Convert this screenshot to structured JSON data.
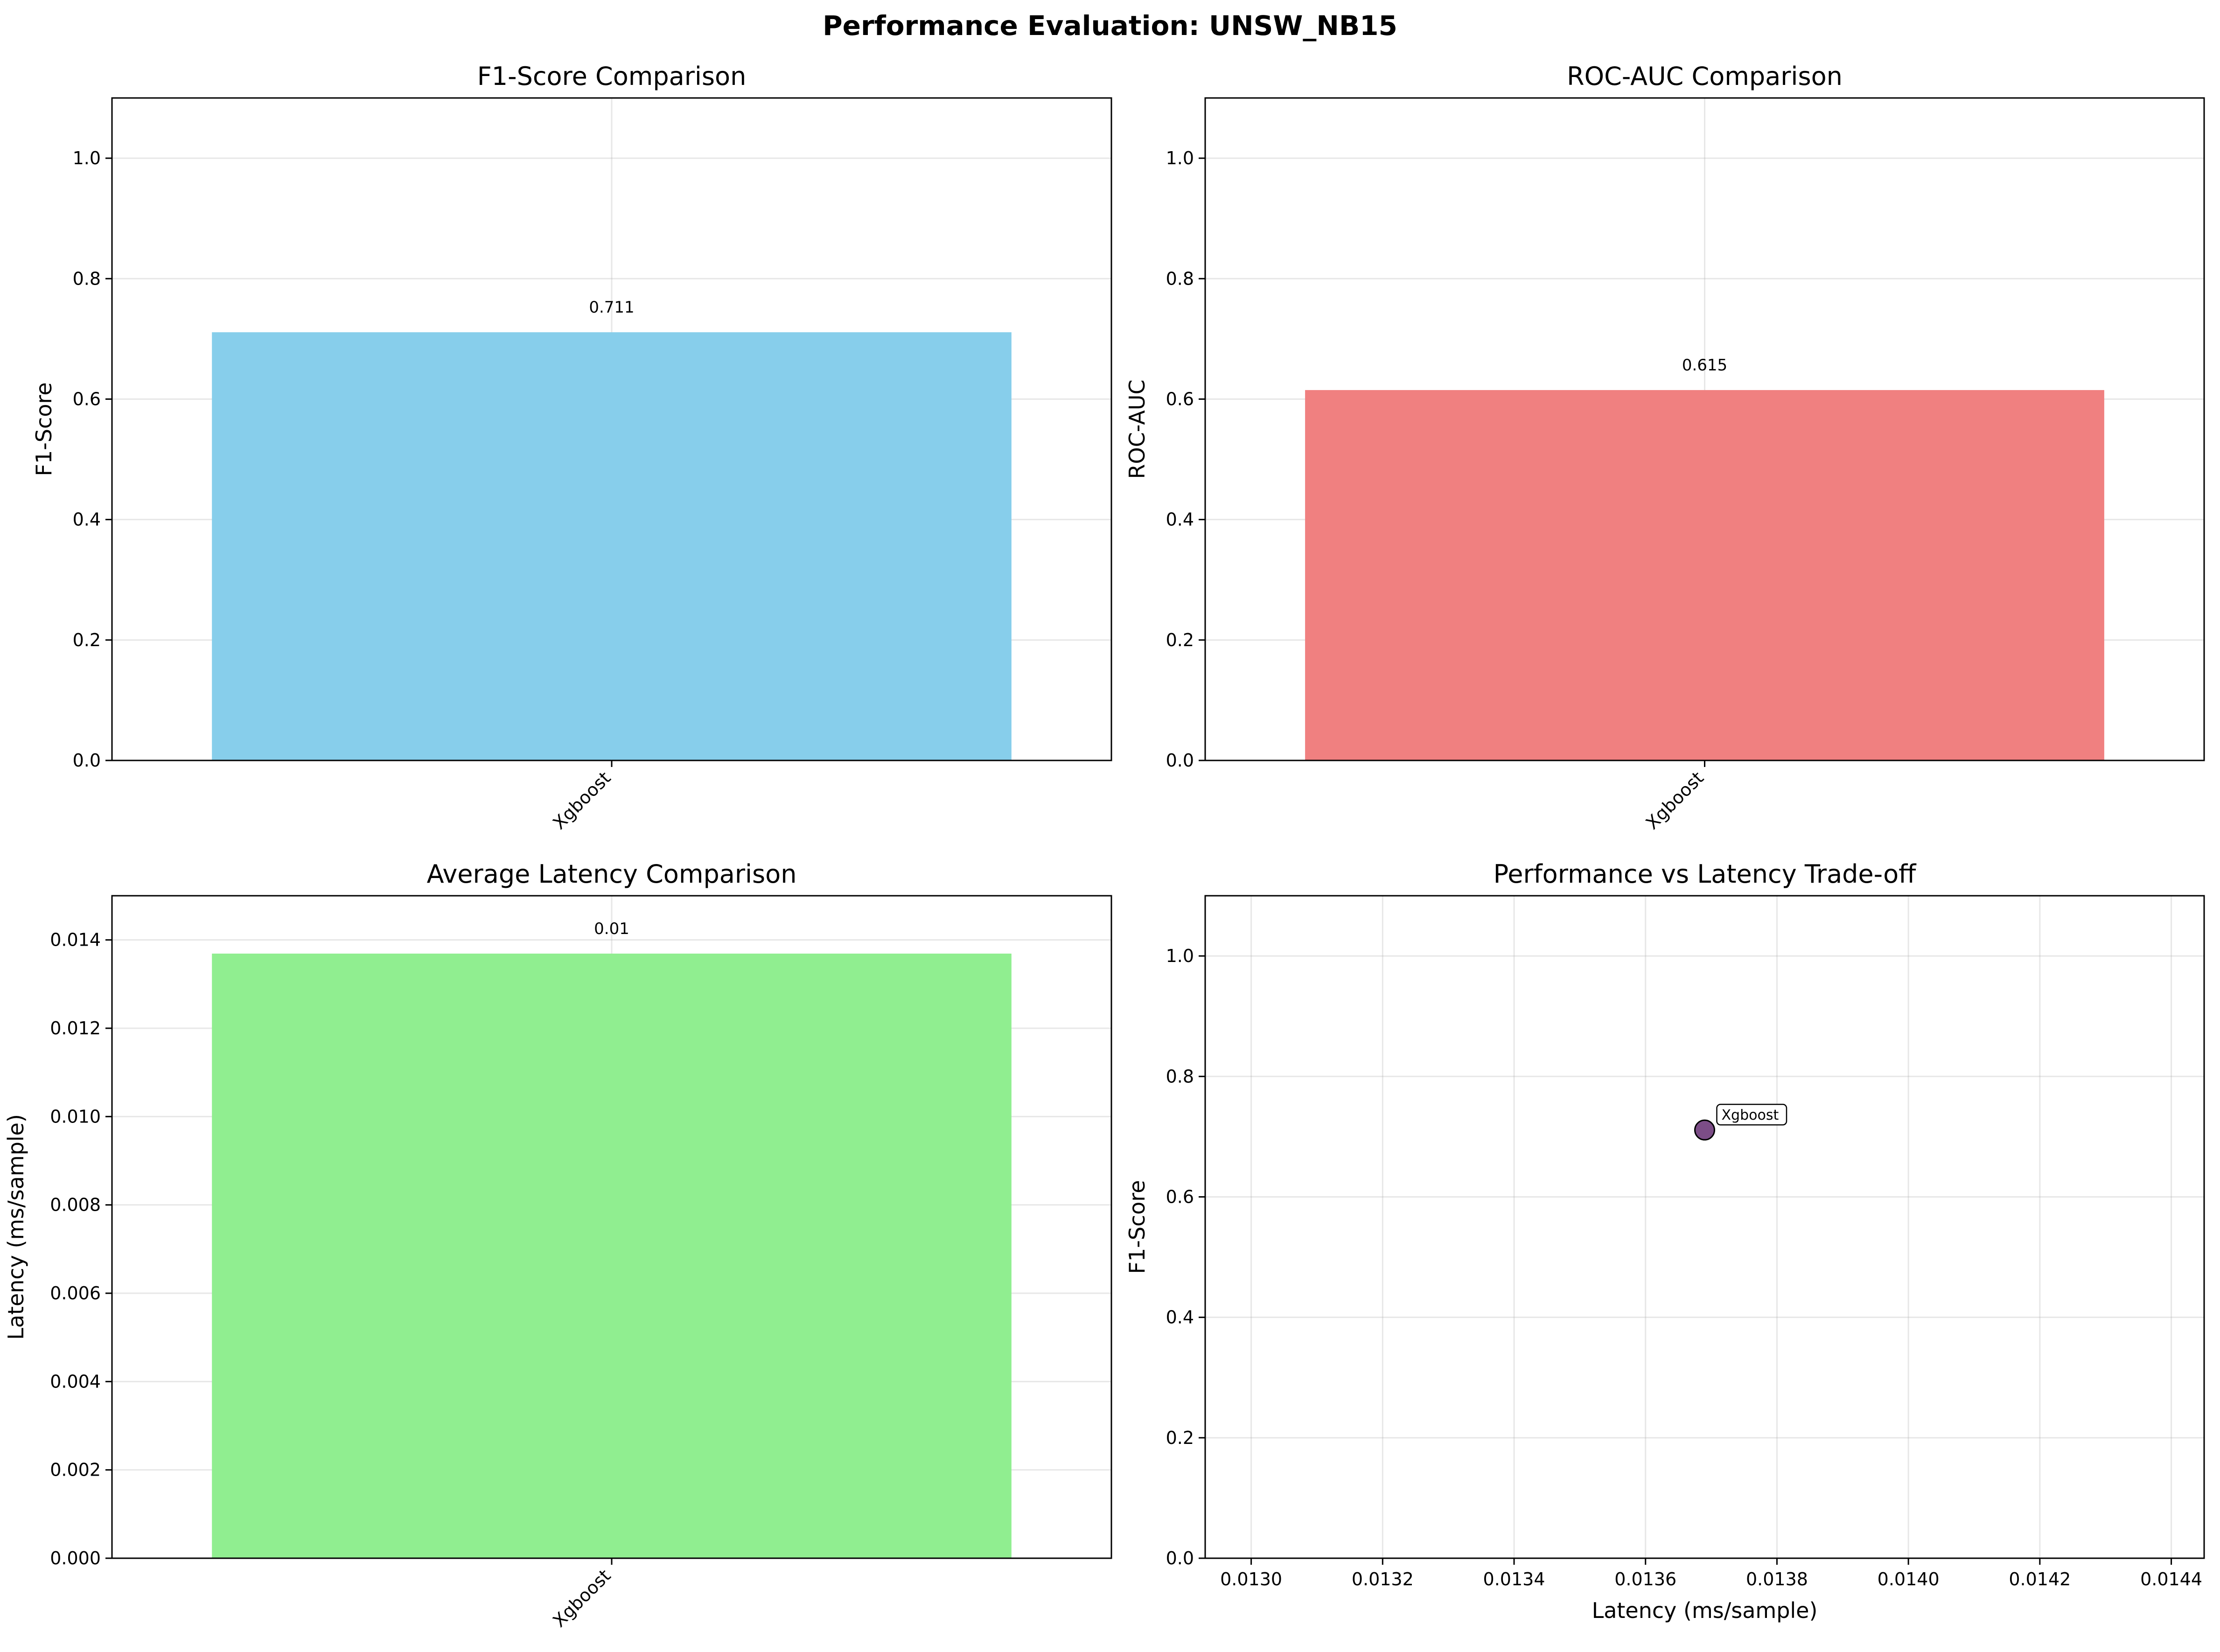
{
  "figure": {
    "title": "Performance Evaluation: UNSW_NB15"
  },
  "chart_data": [
    {
      "id": "f1",
      "type": "bar",
      "title": "F1-Score Comparison",
      "xlabel": "",
      "ylabel": "F1-Score",
      "categories": [
        "Xgboost"
      ],
      "values": [
        0.711
      ],
      "data_labels": [
        "0.711"
      ],
      "ylim": [
        0,
        1.1
      ],
      "yticks": [
        0.0,
        0.2,
        0.4,
        0.6,
        0.8,
        1.0
      ],
      "ytick_labels": [
        "0.0",
        "0.2",
        "0.4",
        "0.6",
        "0.8",
        "1.0"
      ],
      "xtick_rotation": 45,
      "color": "#87ceeb",
      "grid": true
    },
    {
      "id": "roc",
      "type": "bar",
      "title": "ROC-AUC Comparison",
      "xlabel": "",
      "ylabel": "ROC-AUC",
      "categories": [
        "Xgboost"
      ],
      "values": [
        0.615
      ],
      "data_labels": [
        "0.615"
      ],
      "ylim": [
        0,
        1.1
      ],
      "yticks": [
        0.0,
        0.2,
        0.4,
        0.6,
        0.8,
        1.0
      ],
      "ytick_labels": [
        "0.0",
        "0.2",
        "0.4",
        "0.6",
        "0.8",
        "1.0"
      ],
      "xtick_rotation": 45,
      "color": "#f08080",
      "grid": true
    },
    {
      "id": "latency",
      "type": "bar",
      "title": "Average Latency Comparison",
      "xlabel": "",
      "ylabel": "Latency (ms/sample)",
      "categories": [
        "Xgboost"
      ],
      "values": [
        0.01369
      ],
      "data_labels": [
        "0.01"
      ],
      "ylim": [
        0,
        0.015
      ],
      "yticks": [
        0.0,
        0.002,
        0.004,
        0.006,
        0.008,
        0.01,
        0.012,
        0.014
      ],
      "ytick_labels": [
        "0.000",
        "0.002",
        "0.004",
        "0.006",
        "0.008",
        "0.010",
        "0.012",
        "0.014"
      ],
      "xtick_rotation": 45,
      "color": "#90ee90",
      "grid": true
    },
    {
      "id": "tradeoff",
      "type": "scatter",
      "title": "Performance vs Latency Trade-off",
      "xlabel": "Latency (ms/sample)",
      "ylabel": "F1-Score",
      "points": [
        {
          "x": 0.01369,
          "y": 0.711,
          "label": "Xgboost"
        }
      ],
      "xlim": [
        0.01293,
        0.01445
      ],
      "ylim": [
        0,
        1.1
      ],
      "xticks": [
        0.013,
        0.0132,
        0.0134,
        0.0136,
        0.0138,
        0.014,
        0.0142,
        0.0144
      ],
      "xtick_labels": [
        "0.0130",
        "0.0132",
        "0.0134",
        "0.0136",
        "0.0138",
        "0.0140",
        "0.0142",
        "0.0144"
      ],
      "yticks": [
        0.0,
        0.2,
        0.4,
        0.6,
        0.8,
        1.0
      ],
      "ytick_labels": [
        "0.0",
        "0.2",
        "0.4",
        "0.6",
        "0.8",
        "1.0"
      ],
      "color": "#440154",
      "grid": true
    }
  ]
}
